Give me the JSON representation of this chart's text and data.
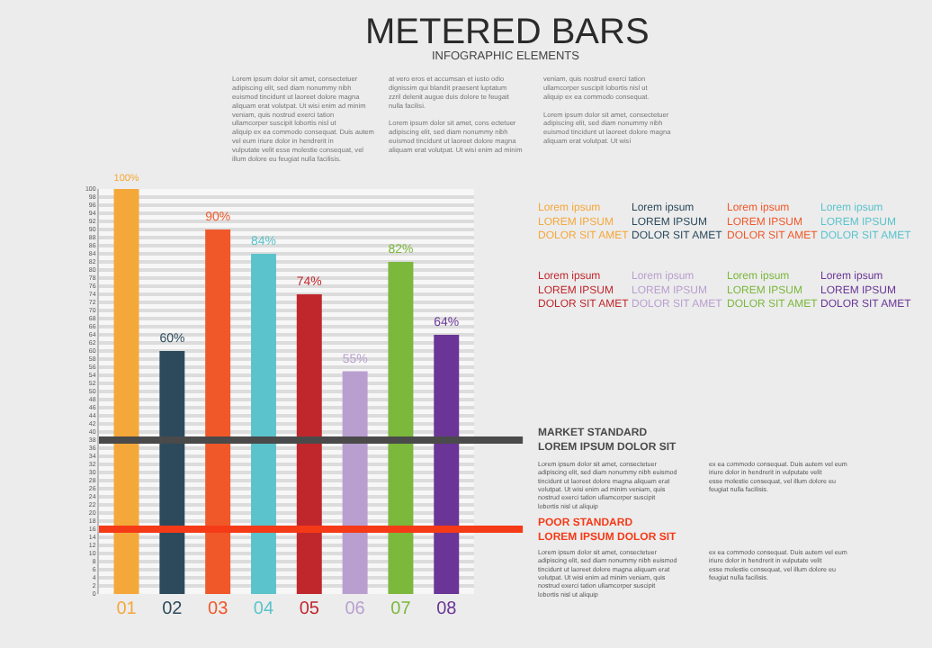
{
  "chart_data": {
    "type": "bar",
    "title": "METERED BARS",
    "subtitle": "INFOGRAPHIC ELEMENTS",
    "categories": [
      "01",
      "02",
      "03",
      "04",
      "05",
      "06",
      "07",
      "08"
    ],
    "values": [
      100,
      60,
      90,
      84,
      74,
      55,
      82,
      64
    ],
    "colors": [
      "#f5a83a",
      "#2c4a5c",
      "#f0582a",
      "#5bc3cc",
      "#c0272d",
      "#b99fd0",
      "#7bb83c",
      "#6a3596"
    ],
    "value_labels": [
      "100%",
      "60%",
      "90%",
      "84%",
      "74%",
      "55%",
      "82%",
      "64%"
    ],
    "ylim": [
      0,
      100
    ],
    "yticks": [
      0,
      2,
      4,
      6,
      8,
      10,
      12,
      14,
      16,
      18,
      20,
      22,
      24,
      26,
      28,
      30,
      32,
      34,
      36,
      38,
      40,
      42,
      44,
      46,
      48,
      50,
      52,
      54,
      56,
      58,
      60,
      62,
      64,
      66,
      68,
      70,
      72,
      74,
      76,
      78,
      80,
      82,
      84,
      86,
      88,
      90,
      92,
      94,
      96,
      98,
      100
    ],
    "grid": "y",
    "ref_lines": [
      {
        "axis": "y",
        "value": 38,
        "label": "MARKET STANDARD\nLOREM IPSUM DOLOR SIT",
        "color": "#4a4a4a"
      },
      {
        "axis": "y",
        "value": 16,
        "label": "POOR STANDARD\nLOREM IPSUM DOLOR SIT",
        "color": "#f53a17"
      }
    ],
    "annotations": [
      "Lorem ipsum dolor sit amet, consectetuer adipiscing elit, sed diam nonummy nibh euismod tincidunt ut laoreet dolore magna aliquam erat volutpat. Ut wisi enim ad minim veniam, quis nostrud exerci tation ullamcorper suscipit lobortis nisl ut aliquip ex ea commodo consequat. Duis autem vel eum iriure dolor in hendrerit in vulputate velit esse molestie consequat, vel illum dolore eu feugiat nulla facilisis.",
      "at vero eros et accumsan et iusto odio dignissim qui blandit praesent luptatum zzril delenit augue duis dolore te feugait nulla facilisi.\n\nLorem ipsum dolor sit amet, cons ectetuer adipiscing elit, sed diam nonummy nibh euismod tincidunt ut laoreet dolore magna aliquam erat volutpat. Ut wisi enim ad minim",
      "veniam, quis nostrud exerci tation ullamcorper suscipit lobortis nisl ut aliquip ex ea commodo consequat.\n\nLorem ipsum dolor sit amet, consectetuer adipiscing elit, sed diam nonummy nibh euismod tincidunt ut laoreet dolore magna aliquam erat volutpat. Ut wisi",
      "Lorem ipsum dolor sit amet, consectetuer adipiscing elit, sed diam nonummy nibh euismod tincidunt ut laoreet dolore magna aliquam erat volutpat. Ut wisi enim ad minim veniam, quis nostrud exerci tation ullamcorper suscipit lobortis nisl ut aliquip",
      "ex ea commodo consequat. Duis autem vel eum iriure dolor in hendrerit in vulputate velit esse molestie consequat, vel illum dolore eu feugiat nulla facilisis.",
      "Lorem ipsum dolor sit amet, consectetuer adipiscing elit, sed diam nonummy nibh euismod tincidunt ut laoreet dolore magna aliquam erat volutpat. Ut wisi enim ad minim veniam, quis nostrud exerci tation ullamcorper suscipit lobortis nisl ut aliquip",
      "ex ea commodo consequat. Duis autem vel eum iriure dolor in hendrerit in vulputate velit esse molestie consequat, vel illum dolore eu feugiat nulla facilisis.",
      "Lorem ipsum\nLOREM IPSUM\nDOLOR SIT AMET",
      "Lorem ipsum\nLOREM IPSUM\nDOLOR SIT AMET",
      "Lorem ipsum\nLOREM IPSUM\nDOLOR SIT AMET",
      "Lorem ipsum\nLOREM IPSUM\nDOLOR SIT AMET",
      "Lorem ipsum\nLOREM IPSUM\nDOLOR SIT AMET",
      "Lorem ipsum\nLOREM IPSUM\nDOLOR SIT AMET",
      "Lorem ipsum\nLOREM IPSUM\nDOLOR SIT AMET",
      "Lorem ipsum\nLOREM IPSUM\nDOLOR SIT AMET"
    ]
  }
}
